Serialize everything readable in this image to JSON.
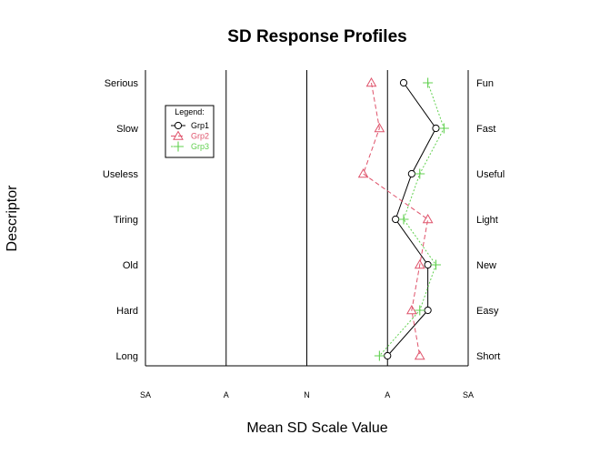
{
  "chart_data": {
    "type": "line",
    "title": "SD Response Profiles",
    "xlabel": "Mean SD Scale Value",
    "ylabel": "Descriptor",
    "xlim": [
      -2,
      2
    ],
    "x_ticks": [
      {
        "value": -2,
        "label": "SA"
      },
      {
        "value": -1,
        "label": "A"
      },
      {
        "value": 0,
        "label": "N"
      },
      {
        "value": 1,
        "label": "A"
      },
      {
        "value": 2,
        "label": "SA"
      }
    ],
    "vertical_reference_lines": [
      -1,
      0,
      1
    ],
    "left_labels": [
      "Serious",
      "Slow",
      "Useless",
      "Tiring",
      "Old",
      "Hard",
      "Long"
    ],
    "right_labels": [
      "Fun",
      "Fast",
      "Useful",
      "Light",
      "New",
      "Easy",
      "Short"
    ],
    "legend": {
      "title": "Legend:",
      "position": "top-left"
    },
    "series": [
      {
        "name": "Grp1",
        "color": "#000000",
        "marker": "circle",
        "line": "solid",
        "values": [
          1.2,
          1.6,
          1.3,
          1.1,
          1.5,
          1.5,
          1.0
        ]
      },
      {
        "name": "Grp2",
        "color": "#DF536B",
        "marker": "triangle",
        "line": "dashed",
        "values": [
          0.8,
          0.9,
          0.7,
          1.5,
          1.4,
          1.3,
          1.4
        ]
      },
      {
        "name": "Grp3",
        "color": "#61D04F",
        "marker": "plus",
        "line": "dotted",
        "values": [
          1.5,
          1.7,
          1.4,
          1.2,
          1.6,
          1.4,
          0.9
        ]
      }
    ]
  }
}
